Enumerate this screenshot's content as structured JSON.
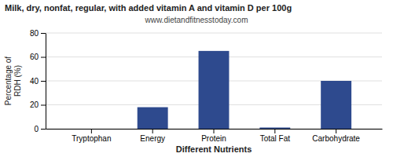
{
  "chart_data": {
    "type": "bar",
    "title": "Milk, dry, nonfat, regular, with added vitamin A and vitamin D per 100g",
    "subtitle": "www.dietandfitnesstoday.com",
    "xlabel": "Different Nutrients",
    "ylabel": "Percentage of\nRDH (%)",
    "categories": [
      "Tryptophan",
      "Energy",
      "Protein",
      "Total Fat",
      "Carbohydrate"
    ],
    "values": [
      0,
      18,
      65,
      1,
      40
    ],
    "color": "#2e4a8e",
    "ylim": [
      0,
      80
    ],
    "yticks": [
      0,
      20,
      40,
      60,
      80
    ],
    "grid": true
  }
}
